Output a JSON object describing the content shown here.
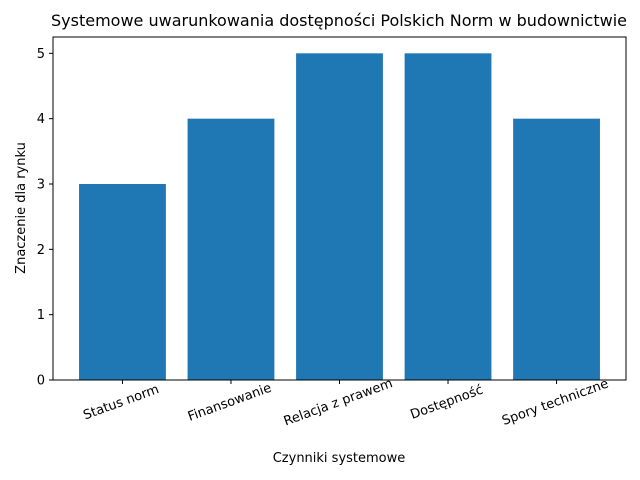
{
  "chart_data": {
    "type": "bar",
    "title": "Systemowe uwarunkowania dostępności Polskich Norm w budownictwie",
    "x_label": "Czynniki systemowe",
    "y_label": "Znaczenie dla rynku",
    "categories": [
      "Status norm",
      "Finansowanie",
      "Relacja z prawem",
      "Dostępność",
      "Spory techniczne"
    ],
    "values": [
      3,
      4,
      5,
      5,
      4
    ],
    "color": "#1f77b4",
    "ylim": [
      0,
      5.25
    ],
    "yticks": [
      0,
      1,
      2,
      3,
      4,
      5
    ],
    "grid": false
  }
}
